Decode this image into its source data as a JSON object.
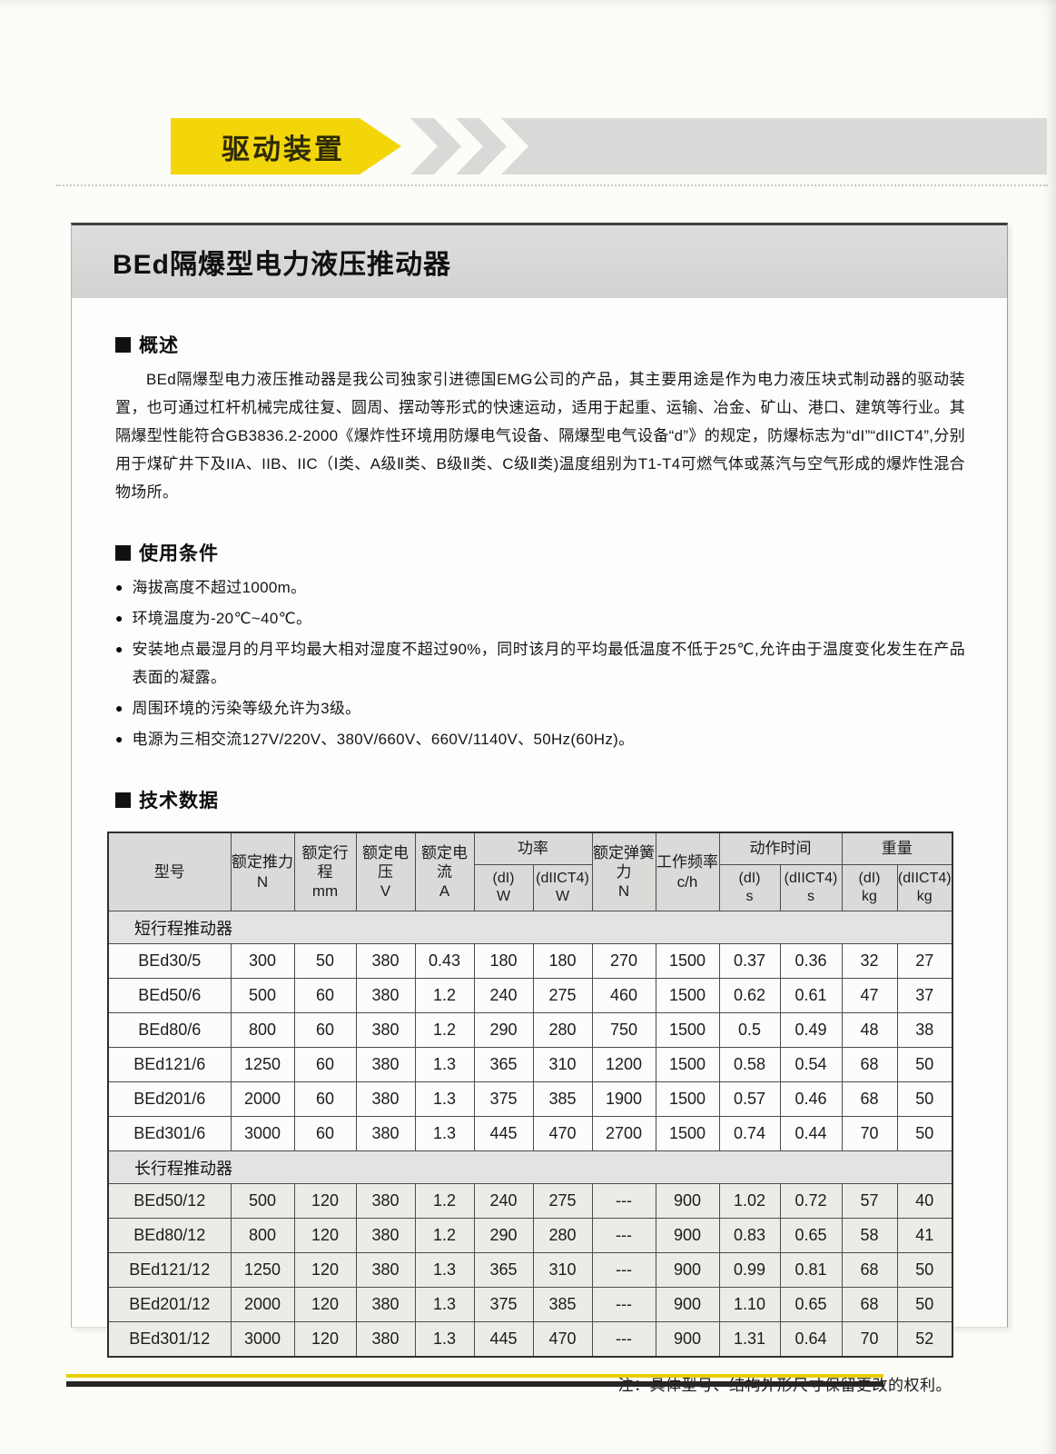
{
  "colors": {
    "banner_yellow": "#f2d60a",
    "footer_yellow": "#e6d002",
    "footer_black": "#262626"
  },
  "page": {
    "banner": {
      "label": "驱动装置"
    },
    "title": "BEd隔爆型电力液压推动器",
    "sections": {
      "overview": {
        "heading": "概述",
        "body": "BEd隔爆型电力液压推动器是我公司独家引进德国EMG公司的产品，其主要用途是作为电力液压块式制动器的驱动装置，也可通过杠杆机械完成往复、圆周、摆动等形式的快速运动，适用于起重、运输、冶金、矿山、港口、建筑等行业。其隔爆型性能符合GB3836.2-2000《爆炸性环境用防爆电气设备、隔爆型电气设备“d”》的规定，防爆标志为“dI”“dIICT4”,分别用于煤矿井下及IIA、IIB、IIC（Ⅰ类、A级Ⅱ类、B级Ⅱ类、C级Ⅱ类)温度组别为T1-T4可燃气体或蒸汽与空气形成的爆炸性混合物场所。"
      },
      "conditions": {
        "heading": "使用条件",
        "items": [
          "海拔高度不超过1000m。",
          "环境温度为-20℃~40℃。",
          "安装地点最湿月的月平均最大相对湿度不超过90%，同时该月的平均最低温度不低于25℃,允许由于温度变化发生在产品表面的凝露。",
          "周围环境的污染等级允许为3级。",
          "电源为三相交流127V/220V、380V/660V、660V/1140V、50Hz(60Hz)。"
        ]
      },
      "specs": {
        "heading": "技术数据"
      }
    },
    "note": "注：具体型号、结构外形尺寸保留更改的权利。"
  },
  "table": {
    "headers": {
      "model": "型号",
      "thrust": "额定推力",
      "thrust_unit": "N",
      "stroke": "额定行程",
      "stroke_unit": "mm",
      "voltage": "额定电压",
      "voltage_unit": "V",
      "current": "额定电流",
      "current_unit": "A",
      "power": "功率",
      "spring": "额定弹簧力",
      "spring_unit": "N",
      "freq": "工作频率",
      "freq_unit": "c/h",
      "time": "动作时间",
      "weight": "重量",
      "sub_di": "(dI)",
      "sub_diict4": "(dIICT4)",
      "unit_w": "W",
      "unit_s": "s",
      "unit_kg": "kg"
    },
    "groups": [
      {
        "label": "短行程推动器",
        "rows": [
          [
            "BEd30/5",
            "300",
            "50",
            "380",
            "0.43",
            "180",
            "180",
            "270",
            "1500",
            "0.37",
            "0.36",
            "32",
            "27"
          ],
          [
            "BEd50/6",
            "500",
            "60",
            "380",
            "1.2",
            "240",
            "275",
            "460",
            "1500",
            "0.62",
            "0.61",
            "47",
            "37"
          ],
          [
            "BEd80/6",
            "800",
            "60",
            "380",
            "1.2",
            "290",
            "280",
            "750",
            "1500",
            "0.5",
            "0.49",
            "48",
            "38"
          ],
          [
            "BEd121/6",
            "1250",
            "60",
            "380",
            "1.3",
            "365",
            "310",
            "1200",
            "1500",
            "0.58",
            "0.54",
            "68",
            "50"
          ],
          [
            "BEd201/6",
            "2000",
            "60",
            "380",
            "1.3",
            "375",
            "385",
            "1900",
            "1500",
            "0.57",
            "0.46",
            "68",
            "50"
          ],
          [
            "BEd301/6",
            "3000",
            "60",
            "380",
            "1.3",
            "445",
            "470",
            "2700",
            "1500",
            "0.74",
            "0.44",
            "70",
            "50"
          ]
        ]
      },
      {
        "label": "长行程推动器",
        "rows": [
          [
            "BEd50/12",
            "500",
            "120",
            "380",
            "1.2",
            "240",
            "275",
            "---",
            "900",
            "1.02",
            "0.72",
            "57",
            "40"
          ],
          [
            "BEd80/12",
            "800",
            "120",
            "380",
            "1.2",
            "290",
            "280",
            "---",
            "900",
            "0.83",
            "0.65",
            "58",
            "41"
          ],
          [
            "BEd121/12",
            "1250",
            "120",
            "380",
            "1.3",
            "365",
            "310",
            "---",
            "900",
            "0.99",
            "0.81",
            "68",
            "50"
          ],
          [
            "BEd201/12",
            "2000",
            "120",
            "380",
            "1.3",
            "375",
            "385",
            "---",
            "900",
            "1.10",
            "0.65",
            "68",
            "50"
          ],
          [
            "BEd301/12",
            "3000",
            "120",
            "380",
            "1.3",
            "445",
            "470",
            "---",
            "900",
            "1.31",
            "0.64",
            "70",
            "52"
          ]
        ]
      }
    ]
  }
}
